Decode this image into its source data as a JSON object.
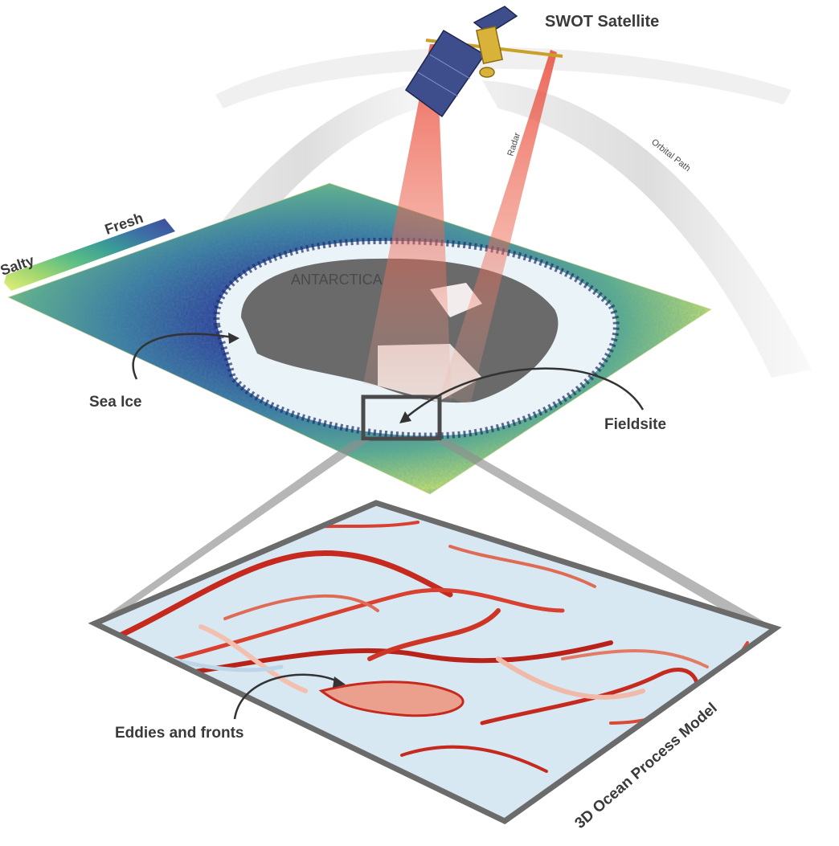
{
  "labels": {
    "satellite": "SWOT Satellite",
    "radar": "Radar",
    "orbital_path": "Orbital Path",
    "antarctica": "ANTARCTICA",
    "sea_ice": "Sea Ice",
    "fieldsite": "Fieldsite",
    "salty": "Salty",
    "fresh": "Fresh",
    "eddies": "Eddies and fronts",
    "model": "3D Ocean Process Model"
  },
  "colors": {
    "salinity_scale": [
      "#e6f07a",
      "#a6d86f",
      "#5fbf84",
      "#3a9e96",
      "#3d6fa6",
      "#3f4a9c"
    ],
    "radar_beam": "#e8412f",
    "land": "#6a6a6a",
    "sea_ice": "#eaf3f8",
    "model_background": "#d8e8f2",
    "front_red": "#c62a1f",
    "frame_gray": "#6b6b6b"
  },
  "icons": [
    "satellite-icon",
    "curved-arrow-icon"
  ]
}
